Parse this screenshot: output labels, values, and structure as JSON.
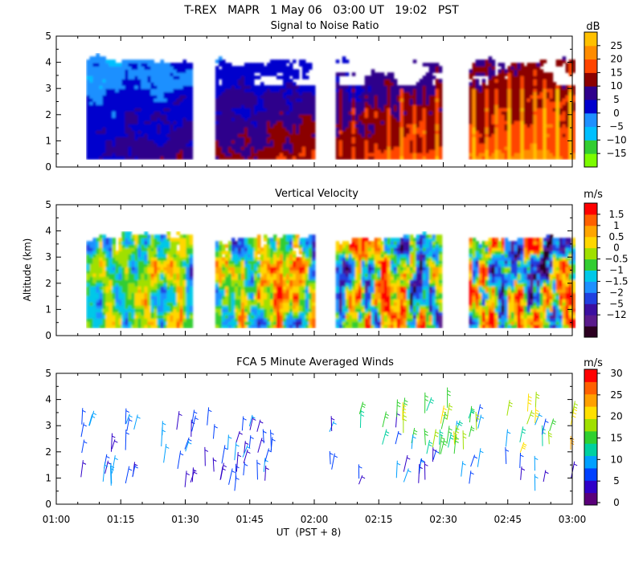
{
  "header": {
    "title": "T-REX   MAPR   1 May 06   03:00 UT   19:02   PST"
  },
  "colors": {
    "snr": [
      "#7cfc00",
      "#32cd32",
      "#00bfff",
      "#1e90ff",
      "#0000cd",
      "#2e008b",
      "#8b0000",
      "#ff4500",
      "#ff8c00",
      "#ffc000"
    ],
    "vv": [
      "#2b0020",
      "#5a1a8c",
      "#3b0fa0",
      "#2040e0",
      "#1e90ff",
      "#00c8e8",
      "#32cd32",
      "#a0e000",
      "#ffd700",
      "#ffa500",
      "#ff6000",
      "#ff0000"
    ],
    "wind": [
      "#5a007a",
      "#3000c8",
      "#0040ff",
      "#00a0ff",
      "#00d0a0",
      "#30d030",
      "#a0e000",
      "#ffe000",
      "#ffa000",
      "#ff6000",
      "#ff0000"
    ]
  },
  "chart_data": [
    {
      "type": "heatmap",
      "title": "Signal to Noise Ratio",
      "ylabel": "Altitude (km)",
      "xlabel": "UT  (PST + 8)",
      "xlim": [
        "01:00",
        "03:00"
      ],
      "ylim": [
        0,
        5
      ],
      "yticks": [
        "0",
        "1",
        "2",
        "3",
        "4",
        "5"
      ],
      "colorbar": {
        "unit": "dB",
        "tick_labels": [
          "25",
          "20",
          "15",
          "10",
          "5",
          "0",
          "−5",
          "−10",
          "−15"
        ]
      },
      "data_segments_ut": [
        [
          "01:07",
          "01:31"
        ],
        [
          "01:37",
          "02:00"
        ],
        [
          "02:05",
          "02:29"
        ],
        [
          "02:36",
          "03:00"
        ]
      ],
      "data_altitude_km": [
        0.3,
        4.3
      ]
    },
    {
      "type": "heatmap",
      "title": "Vertical Velocity",
      "ylabel": "Altitude (km)",
      "xlabel": "UT  (PST + 8)",
      "xlim": [
        "01:00",
        "03:00"
      ],
      "ylim": [
        0,
        5
      ],
      "yticks": [
        "0",
        "1",
        "2",
        "3",
        "4",
        "5"
      ],
      "colorbar": {
        "unit": "m/s",
        "tick_labels": [
          "1.5",
          "1",
          "0.5",
          "0",
          "−0.5",
          "−1",
          "−1.5",
          "−2",
          "−5",
          "−12"
        ]
      },
      "data_segments_ut": [
        [
          "01:07",
          "01:31"
        ],
        [
          "01:37",
          "02:00"
        ],
        [
          "02:05",
          "02:29"
        ],
        [
          "02:36",
          "03:00"
        ]
      ],
      "data_altitude_km": [
        0.3,
        4.0
      ]
    },
    {
      "type": "scatter",
      "title": "FCA 5 Minute Averaged Winds",
      "ylabel": "Altitude (km)",
      "xlabel": "UT  (PST + 8)",
      "xlim": [
        "01:00",
        "03:00"
      ],
      "ylim": [
        0,
        5
      ],
      "yticks": [
        "0",
        "1",
        "2",
        "3",
        "4",
        "5"
      ],
      "xticks": [
        "01:00",
        "01:15",
        "01:30",
        "01:45",
        "02:00",
        "02:15",
        "02:30",
        "02:45",
        "03:00"
      ],
      "colorbar": {
        "unit": "m/s",
        "tick_labels": [
          "30",
          "25",
          "20",
          "15",
          "10",
          "5",
          "0"
        ]
      },
      "wind_speed_range_mps": [
        0,
        30
      ]
    }
  ]
}
